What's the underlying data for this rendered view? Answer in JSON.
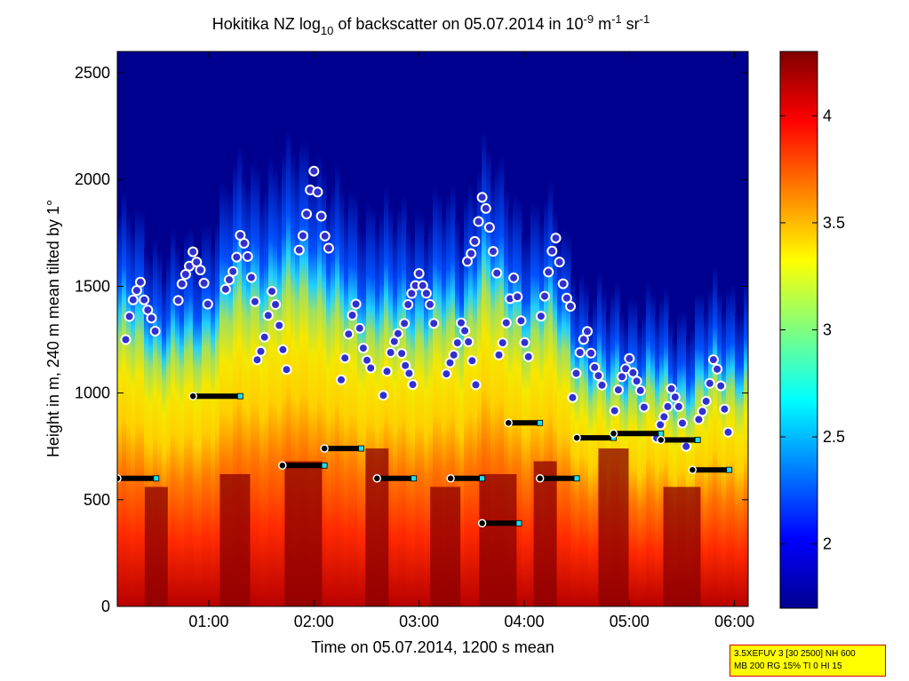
{
  "chart_data": {
    "type": "heatmap",
    "title_parts": {
      "a": "Hokitika NZ log",
      "sub": "10",
      "b": " of backscatter on 05.07.2014 in 10",
      "sup1": "-9",
      "c": " m",
      "sup2": "-1",
      "d": " sr",
      "sup3": "-1"
    },
    "xlabel": "Time on 05.07.2014, 1200 s mean",
    "ylabel": "Height in m, 240 m mean tilted by 1°",
    "x_ticks": [
      "01:00",
      "02:00",
      "03:00",
      "04:00",
      "05:00",
      "06:00"
    ],
    "x_tick_hours": [
      1,
      2,
      3,
      4,
      5,
      6
    ],
    "x_range_hours": [
      0.13,
      6.13
    ],
    "y_ticks": [
      "0",
      "500",
      "1000",
      "1500",
      "2000",
      "2500"
    ],
    "y_tick_values": [
      0,
      500,
      1000,
      1500,
      2000,
      2500
    ],
    "y_range": [
      0,
      2600
    ],
    "colorbar_ticks": [
      "2",
      "2.5",
      "3",
      "3.5",
      "4"
    ],
    "colorbar_tick_values": [
      2,
      2.5,
      3,
      3.5,
      4
    ],
    "colorbar_range": [
      1.7,
      4.3
    ],
    "colormap": "jet",
    "cloud_top_profile_hours": [
      0.15,
      0.5,
      0.85,
      1.0,
      1.2,
      1.5,
      1.8,
      2.0,
      2.2,
      2.4,
      2.6,
      2.8,
      3.0,
      3.2,
      3.4,
      3.6,
      3.8,
      4.0,
      4.2,
      4.4,
      4.6,
      4.8,
      5.0,
      5.2,
      5.4,
      5.6,
      5.8,
      6.1
    ],
    "cloud_top_profile_m": [
      1850,
      1700,
      1650,
      1800,
      2000,
      2050,
      2100,
      2150,
      1950,
      1850,
      1900,
      1800,
      1850,
      1900,
      1800,
      2200,
      1950,
      1850,
      1900,
      1700,
      1500,
      1400,
      1450,
      1420,
      1350,
      1400,
      1450,
      1500
    ],
    "layer_points": [
      {
        "t": 0.35,
        "h": 1550
      },
      {
        "t": 0.85,
        "h": 1700
      },
      {
        "t": 1.3,
        "h": 1750
      },
      {
        "t": 1.6,
        "h": 1450
      },
      {
        "t": 2.0,
        "h": 2000
      },
      {
        "t": 2.4,
        "h": 1400
      },
      {
        "t": 2.8,
        "h": 1300
      },
      {
        "t": 3.0,
        "h": 1600
      },
      {
        "t": 3.4,
        "h": 1350
      },
      {
        "t": 3.6,
        "h": 1900
      },
      {
        "t": 3.9,
        "h": 1500
      },
      {
        "t": 4.3,
        "h": 1700
      },
      {
        "t": 4.6,
        "h": 1300
      },
      {
        "t": 5.0,
        "h": 1200
      },
      {
        "t": 5.4,
        "h": 1050
      },
      {
        "t": 5.8,
        "h": 1150
      }
    ],
    "mixing_layer_segments": [
      {
        "t0": 0.13,
        "t1": 0.5,
        "h": 600
      },
      {
        "t0": 0.85,
        "t1": 1.3,
        "h": 985
      },
      {
        "t0": 1.7,
        "t1": 2.1,
        "h": 660
      },
      {
        "t0": 2.1,
        "t1": 2.45,
        "h": 740
      },
      {
        "t0": 2.6,
        "t1": 2.95,
        "h": 600
      },
      {
        "t0": 3.3,
        "t1": 3.6,
        "h": 600
      },
      {
        "t0": 3.6,
        "t1": 3.95,
        "h": 390
      },
      {
        "t0": 3.85,
        "t1": 4.15,
        "h": 860
      },
      {
        "t0": 4.15,
        "t1": 4.5,
        "h": 600
      },
      {
        "t0": 4.5,
        "t1": 4.85,
        "h": 790
      },
      {
        "t0": 4.85,
        "t1": 5.3,
        "h": 810
      },
      {
        "t0": 5.3,
        "t1": 5.65,
        "h": 780
      },
      {
        "t0": 5.6,
        "t1": 5.95,
        "h": 640
      }
    ]
  },
  "info_box": {
    "line1": "3.5XEFUV 3 [30 2500] NH 600",
    "line2": "MB 200 RG 15% TI 0 HI 15"
  }
}
